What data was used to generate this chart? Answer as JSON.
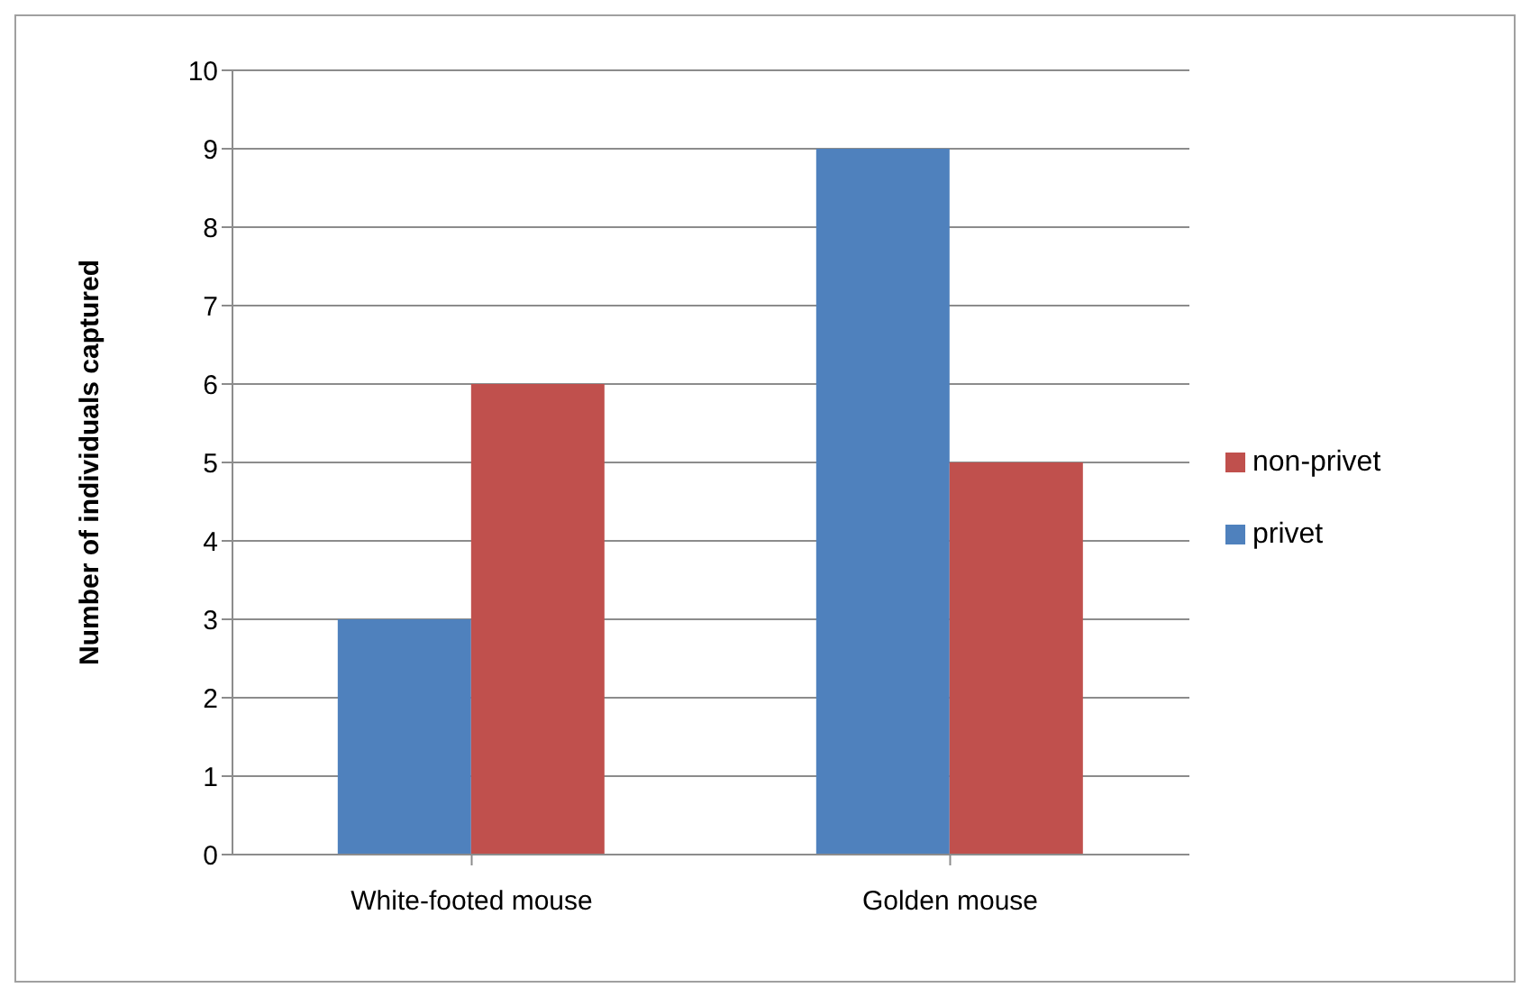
{
  "chart_data": {
    "type": "bar",
    "ylabel": "Number of individuals captured",
    "categories": [
      "White-footed mouse",
      "Golden mouse"
    ],
    "series": [
      {
        "name": "privet",
        "color": "#4f81bd",
        "values": [
          3,
          9
        ]
      },
      {
        "name": "non-privet",
        "color": "#c0504d",
        "values": [
          6,
          5
        ]
      }
    ],
    "ylim": [
      0,
      10
    ],
    "yticks": [
      0,
      1,
      2,
      3,
      4,
      5,
      6,
      7,
      8,
      9,
      10
    ],
    "grid": "y",
    "legend": "right"
  }
}
